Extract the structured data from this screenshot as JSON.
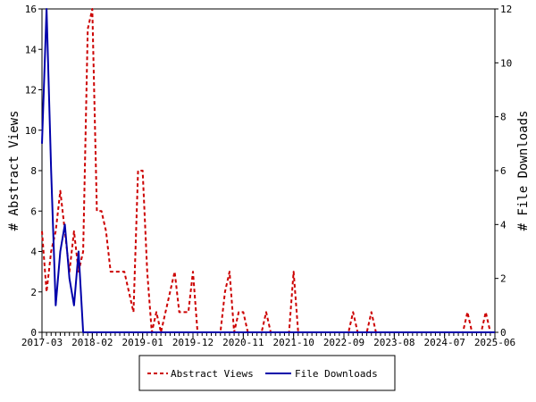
{
  "chart_data": {
    "type": "line",
    "xlabel": "",
    "ylabel": "# Abstract Views",
    "y2label": "# File Downloads",
    "x_tick_labels": [
      "2017-03",
      "2018-02",
      "2019-01",
      "2019-12",
      "2020-11",
      "2021-10",
      "2022-09",
      "2023-08",
      "2024-07",
      "2025-06"
    ],
    "x_range": [
      "2017-03",
      "2025-06"
    ],
    "ylim": [
      0,
      16
    ],
    "y_ticks": [
      0,
      2,
      4,
      6,
      8,
      10,
      12,
      14,
      16
    ],
    "y2lim": [
      0,
      12
    ],
    "y2_ticks": [
      0,
      2,
      4,
      6,
      8,
      10,
      12
    ],
    "grid": false,
    "legend_position": "bottom",
    "series": [
      {
        "name": "Abstract Views",
        "axis": "left",
        "color": "#cc0000",
        "dash": "dashed",
        "points": [
          [
            "2017-03",
            5
          ],
          [
            "2017-04",
            2
          ],
          [
            "2017-05",
            4
          ],
          [
            "2017-06",
            5
          ],
          [
            "2017-07",
            7
          ],
          [
            "2017-08",
            5
          ],
          [
            "2017-09",
            3
          ],
          [
            "2017-10",
            5
          ],
          [
            "2017-11",
            3
          ],
          [
            "2017-12",
            4
          ],
          [
            "2018-01",
            15
          ],
          [
            "2018-02",
            16
          ],
          [
            "2018-03",
            6
          ],
          [
            "2018-04",
            6
          ],
          [
            "2018-05",
            5
          ],
          [
            "2018-06",
            3
          ],
          [
            "2018-07",
            3
          ],
          [
            "2018-08",
            3
          ],
          [
            "2018-09",
            3
          ],
          [
            "2018-10",
            2
          ],
          [
            "2018-11",
            1
          ],
          [
            "2018-12",
            8
          ],
          [
            "2019-01",
            8
          ],
          [
            "2019-02",
            3
          ],
          [
            "2019-03",
            0
          ],
          [
            "2019-04",
            1
          ],
          [
            "2019-05",
            0
          ],
          [
            "2019-06",
            1
          ],
          [
            "2019-07",
            2
          ],
          [
            "2019-08",
            3
          ],
          [
            "2019-09",
            1
          ],
          [
            "2019-10",
            1
          ],
          [
            "2019-11",
            1
          ],
          [
            "2019-12",
            3
          ],
          [
            "2020-01",
            0
          ],
          [
            "2020-02",
            0
          ],
          [
            "2020-03",
            0
          ],
          [
            "2020-04",
            0
          ],
          [
            "2020-05",
            0
          ],
          [
            "2020-06",
            0
          ],
          [
            "2020-07",
            2
          ],
          [
            "2020-08",
            3
          ],
          [
            "2020-09",
            0
          ],
          [
            "2020-10",
            1
          ],
          [
            "2020-11",
            1
          ],
          [
            "2020-12",
            0
          ],
          [
            "2021-01",
            0
          ],
          [
            "2021-02",
            0
          ],
          [
            "2021-03",
            0
          ],
          [
            "2021-04",
            1
          ],
          [
            "2021-05",
            0
          ],
          [
            "2021-06",
            0
          ],
          [
            "2021-07",
            0
          ],
          [
            "2021-08",
            0
          ],
          [
            "2021-09",
            0
          ],
          [
            "2021-10",
            3
          ],
          [
            "2021-11",
            0
          ],
          [
            "2022-10",
            0
          ],
          [
            "2022-11",
            1
          ],
          [
            "2022-12",
            0
          ],
          [
            "2023-02",
            0
          ],
          [
            "2023-03",
            1
          ],
          [
            "2023-04",
            0
          ],
          [
            "2024-11",
            0
          ],
          [
            "2024-12",
            1
          ],
          [
            "2025-01",
            0
          ],
          [
            "2025-03",
            0
          ],
          [
            "2025-04",
            1
          ],
          [
            "2025-05",
            0
          ],
          [
            "2025-06",
            0
          ]
        ]
      },
      {
        "name": "File Downloads",
        "axis": "right",
        "color": "#0000aa",
        "dash": "solid",
        "points": [
          [
            "2017-03",
            7
          ],
          [
            "2017-04",
            12
          ],
          [
            "2017-05",
            6
          ],
          [
            "2017-06",
            1
          ],
          [
            "2017-07",
            3
          ],
          [
            "2017-08",
            4
          ],
          [
            "2017-09",
            2
          ],
          [
            "2017-10",
            1
          ],
          [
            "2017-11",
            3
          ],
          [
            "2017-12",
            0
          ],
          [
            "2025-06",
            0
          ]
        ]
      }
    ]
  }
}
